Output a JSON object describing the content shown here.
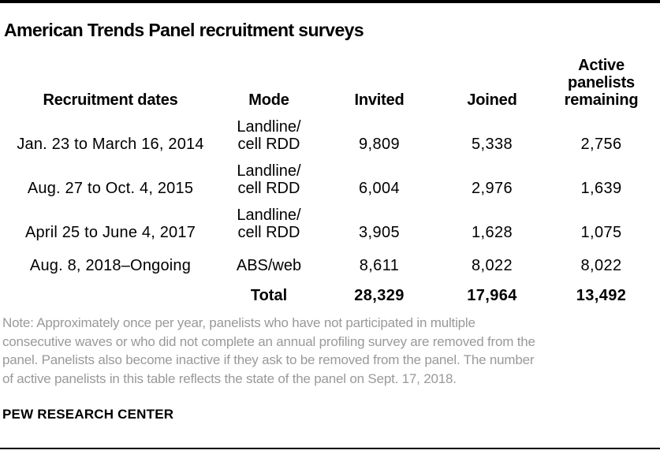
{
  "header": {
    "title": "American Trends Panel recruitment surveys"
  },
  "table": {
    "columns": {
      "dates": "Recruitment dates",
      "mode": "Mode",
      "invited": "Invited",
      "joined": "Joined",
      "active": "Active\npanelists\nremaining"
    },
    "rows": [
      {
        "dates": "Jan. 23 to March 16, 2014",
        "mode": "Landline/\ncell RDD",
        "invited": "9,809",
        "joined": "5,338",
        "active": "2,756"
      },
      {
        "dates": "Aug. 27 to Oct. 4, 2015",
        "mode": "Landline/\ncell RDD",
        "invited": "6,004",
        "joined": "2,976",
        "active": "1,639"
      },
      {
        "dates": "April 25 to June 4, 2017",
        "mode": "Landline/\ncell RDD",
        "invited": "3,905",
        "joined": "1,628",
        "active": "1,075"
      },
      {
        "dates": "Aug. 8, 2018–Ongoing",
        "mode": "ABS/web",
        "invited": "8,611",
        "joined": "8,022",
        "active": "8,022"
      }
    ],
    "total": {
      "label": "Total",
      "invited": "28,329",
      "joined": "17,964",
      "active": "13,492"
    }
  },
  "footer": {
    "note": "Note: Approximately once per year, panelists who have not participated in multiple\nconsecutive waves or who did not complete an annual profiling survey are removed from the\npanel. Panelists also become inactive if they ask to be removed from the panel. The number\nof active panelists in this table reflects the state of the panel on Sept. 17, 2018.",
    "source": "PEW RESEARCH CENTER"
  },
  "colors": {
    "rule": "#000000",
    "text": "#000000",
    "note_gray": "#999999",
    "background": "#ffffff"
  },
  "chart_data": {
    "type": "table",
    "title": "American Trends Panel recruitment surveys",
    "columns": [
      "Recruitment dates",
      "Mode",
      "Invited",
      "Joined",
      "Active panelists remaining"
    ],
    "rows": [
      [
        "Jan. 23 to March 16, 2014",
        "Landline/cell RDD",
        9809,
        5338,
        2756
      ],
      [
        "Aug. 27 to Oct. 4, 2015",
        "Landline/cell RDD",
        6004,
        2976,
        1639
      ],
      [
        "April 25 to June 4, 2017",
        "Landline/cell RDD",
        3905,
        1628,
        1075
      ],
      [
        "Aug. 8, 2018–Ongoing",
        "ABS/web",
        8611,
        8022,
        8022
      ]
    ],
    "total_row": [
      "Total",
      28329,
      17964,
      13492
    ],
    "note": "Note: Approximately once per year, panelists who have not participated in multiple consecutive waves or who did not complete an annual profiling survey are removed from the panel. Panelists also become inactive if they ask to be removed from the panel. The number of active panelists in this table reflects the state of the panel on Sept. 17, 2018.",
    "source": "PEW RESEARCH CENTER"
  }
}
